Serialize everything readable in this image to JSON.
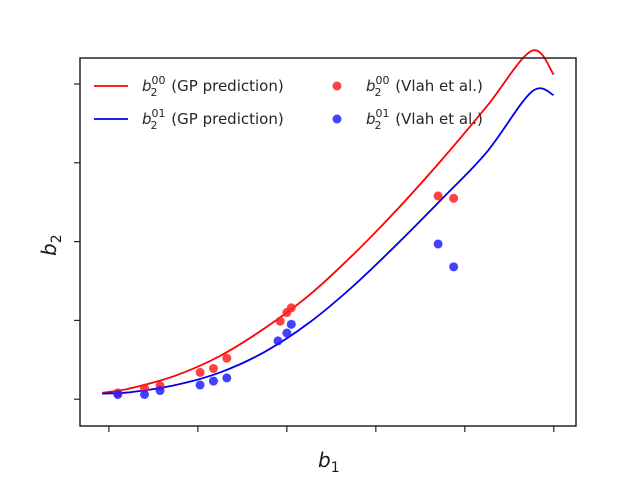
{
  "chart_data": {
    "type": "scatter",
    "xlabel": "b",
    "xlabel_sub": "1",
    "ylabel": "b",
    "ylabel_sub": "2",
    "x_tick_labels_shown": false,
    "y_tick_labels_shown": false,
    "x_ticks": [
      0.6,
      1.0,
      1.4,
      1.8,
      2.2,
      2.6
    ],
    "y_ticks": [
      -1,
      0,
      1,
      2,
      3
    ],
    "xlim": [
      0.47,
      2.7
    ],
    "ylim": [
      -1.34,
      3.33
    ],
    "grid": false,
    "legend_position": "top-left",
    "series": [
      {
        "name": "b_2^00 (GP prediction)",
        "kind": "line",
        "color": "#ff0000",
        "legend_base": "b",
        "legend_sub": "2",
        "legend_sup": "00",
        "legend_suffix": " (GP prediction)",
        "x": [
          0.57,
          0.7,
          0.9,
          1.1,
          1.3,
          1.5,
          1.7,
          1.9,
          2.1,
          2.3,
          2.5,
          2.6
        ],
        "y": [
          -0.92,
          -0.86,
          -0.7,
          -0.45,
          -0.1,
          0.32,
          0.84,
          1.42,
          2.05,
          2.72,
          3.42,
          3.12
        ]
      },
      {
        "name": "b_2^01 (GP prediction)",
        "kind": "line",
        "color": "#0000ee",
        "legend_base": "b",
        "legend_sub": "2",
        "legend_sup": "01",
        "legend_suffix": " (GP prediction)",
        "x": [
          0.57,
          0.7,
          0.9,
          1.1,
          1.3,
          1.5,
          1.7,
          1.9,
          2.1,
          2.3,
          2.5,
          2.6
        ],
        "y": [
          -0.93,
          -0.91,
          -0.82,
          -0.66,
          -0.4,
          -0.03,
          0.44,
          0.98,
          1.55,
          2.14,
          2.9,
          2.86
        ]
      },
      {
        "name": "b_2^00 (Vlah et al.)",
        "kind": "points",
        "color": "#ff2020",
        "legend_base": "b",
        "legend_sub": "2",
        "legend_sup": "00",
        "legend_suffix": " (Vlah et al.)",
        "x": [
          0.64,
          0.76,
          0.83,
          1.01,
          1.07,
          1.13,
          1.37,
          1.4,
          1.42,
          2.08,
          2.15
        ],
        "y": [
          -0.92,
          -0.86,
          -0.83,
          -0.66,
          -0.61,
          -0.48,
          -0.01,
          0.1,
          0.16,
          1.58,
          1.55
        ]
      },
      {
        "name": "b_2^01 (Vlah et al.)",
        "kind": "points",
        "color": "#2020ff",
        "legend_base": "b",
        "legend_sub": "2",
        "legend_sup": "01",
        "legend_suffix": " (Vlah et al.)",
        "x": [
          0.64,
          0.76,
          0.83,
          1.01,
          1.07,
          1.13,
          1.36,
          1.4,
          1.42,
          2.08,
          2.15
        ],
        "y": [
          -0.94,
          -0.94,
          -0.89,
          -0.82,
          -0.77,
          -0.73,
          -0.26,
          -0.16,
          -0.05,
          0.97,
          0.68
        ]
      }
    ]
  }
}
